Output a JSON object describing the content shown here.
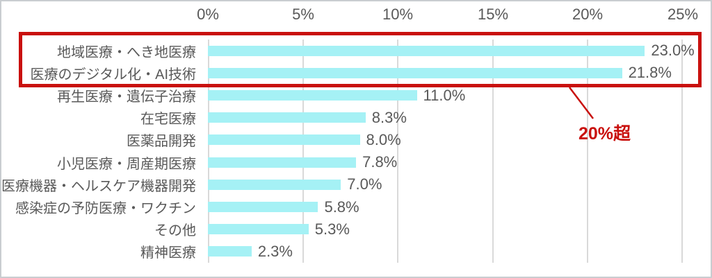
{
  "colors": {
    "bar_color": "#a5f1f5",
    "accent_red": "#c9100d",
    "text_gray": "#595959",
    "grid_color": "#d9d9d9",
    "frame_color": "#c9cdd0"
  },
  "chart_data": {
    "type": "bar",
    "orientation": "horizontal",
    "title": "",
    "xlabel": "",
    "ylabel": "",
    "categories": [
      "地域医療・へき地医療",
      "医療のデジタル化・AI技術",
      "再生医療・遺伝子治療",
      "在宅医療",
      "医薬品開発",
      "小児医療・周産期医療",
      "医療機器・ヘルスケア機器開発",
      "感染症の予防医療・ワクチン",
      "その他",
      "精神医療"
    ],
    "values": [
      23.0,
      21.8,
      11.0,
      8.3,
      8.0,
      7.8,
      7.0,
      5.8,
      5.3,
      2.3
    ],
    "value_labels": [
      "23.0%",
      "21.8%",
      "11.0%",
      "8.3%",
      "8.0%",
      "7.8%",
      "7.0%",
      "5.8%",
      "5.3%",
      "2.3%"
    ],
    "ticks": [
      "0%",
      "5%",
      "10%",
      "15%",
      "20%",
      "25%"
    ],
    "xlim": [
      0,
      25
    ],
    "grid": true,
    "legend": false,
    "highlight": {
      "rows": [
        0,
        1
      ],
      "label": "20%超"
    }
  }
}
